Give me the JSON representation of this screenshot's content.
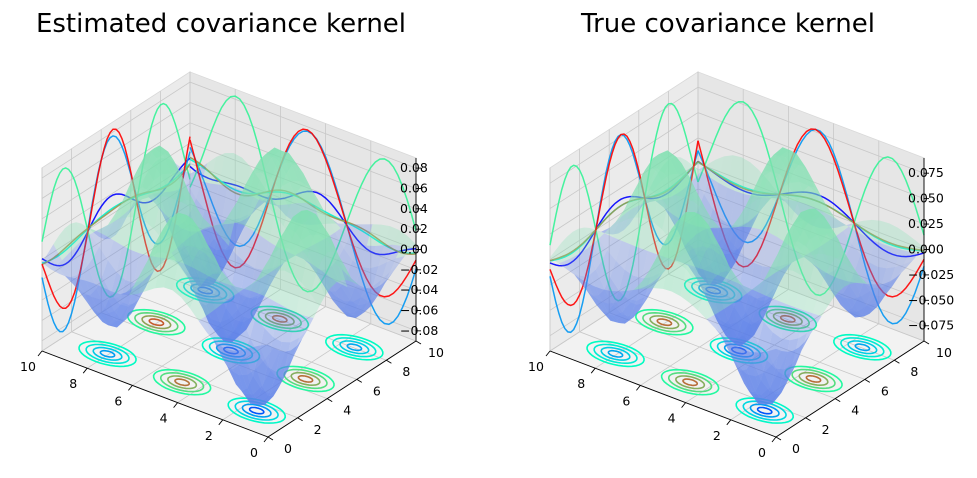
{
  "chart_data": [
    {
      "type": "surface3d",
      "title": "Estimated covariance kernel",
      "x_ticks": [
        "0",
        "2",
        "4",
        "6",
        "8",
        "10"
      ],
      "y_ticks": [
        "0",
        "2",
        "4",
        "6",
        "8",
        "10"
      ],
      "z_ticks": [
        "0.08",
        "0.06",
        "0.04",
        "0.02",
        "0.00",
        "−0.02",
        "−0.04",
        "−0.06",
        "−0.08"
      ],
      "xlim": [
        0,
        10
      ],
      "ylim": [
        0,
        10
      ],
      "zlim": [
        -0.09,
        0.09
      ],
      "surface_min": -0.085,
      "surface_max": 0.085,
      "colormap": "rainbow",
      "surface_color": "#4169e1",
      "grid": true,
      "projections": [
        "contour on z-floor",
        "contour on x-wall",
        "contour on y-wall"
      ]
    },
    {
      "type": "surface3d",
      "title": "True covariance kernel",
      "x_ticks": [
        "0",
        "2",
        "4",
        "6",
        "8",
        "10"
      ],
      "y_ticks": [
        "0",
        "2",
        "4",
        "6",
        "8",
        "10"
      ],
      "z_ticks": [
        "0.075",
        "0.050",
        "0.025",
        "0.000",
        "−0.025",
        "−0.050",
        "−0.075"
      ],
      "xlim": [
        0,
        10
      ],
      "ylim": [
        0,
        10
      ],
      "zlim": [
        -0.09,
        0.09
      ],
      "surface_min": -0.09,
      "surface_max": 0.09,
      "colormap": "rainbow",
      "surface_color": "#4169e1",
      "grid": true,
      "projections": [
        "contour on z-floor",
        "contour on x-wall",
        "contour on y-wall"
      ]
    }
  ]
}
